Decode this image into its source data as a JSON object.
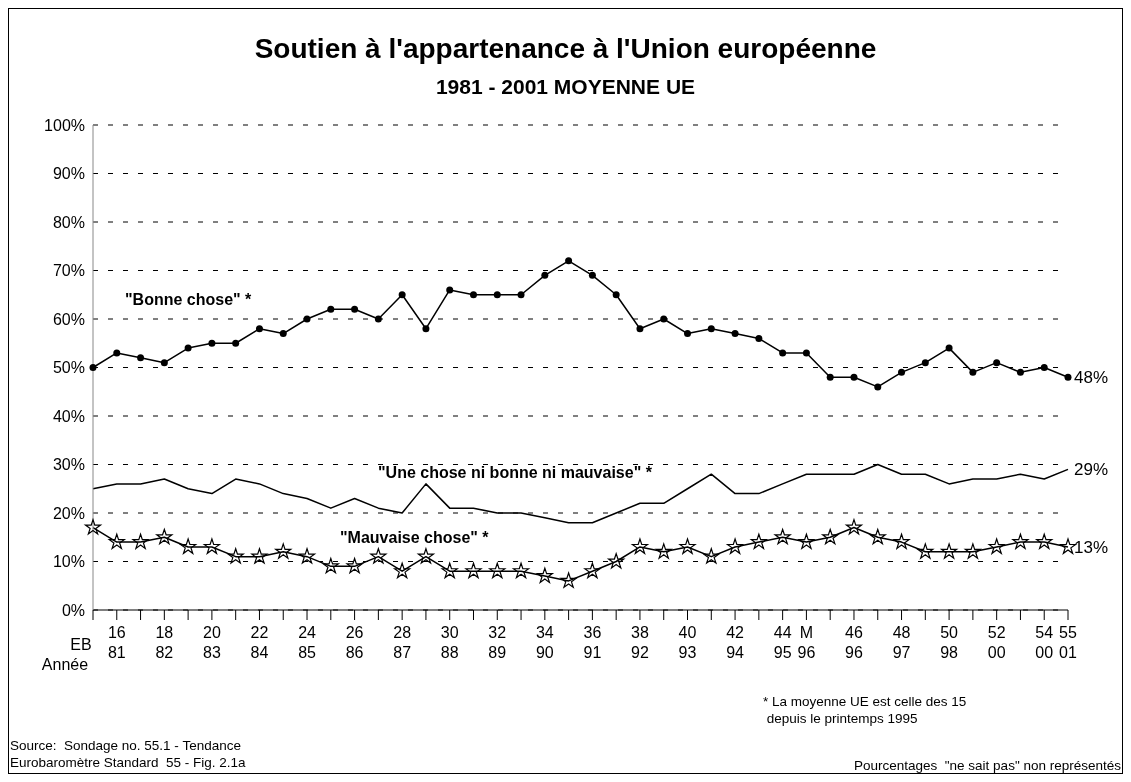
{
  "chart_data": {
    "type": "line",
    "title": "Soutien à l'appartenance à l'Union européenne",
    "subtitle": "1981 - 2001 MOYENNE UE",
    "categories": [
      null,
      "16\n81",
      null,
      "18\n82",
      null,
      "20\n83",
      null,
      "22\n84",
      null,
      "24\n85",
      null,
      "26\n86",
      null,
      "28\n87",
      null,
      "30\n88",
      null,
      "32\n89",
      null,
      "34\n90",
      null,
      "36\n91",
      null,
      "38\n92",
      null,
      "40\n93",
      null,
      "42\n94",
      null,
      "44\n95",
      "M\n96",
      null,
      "46\n96",
      null,
      "48\n97",
      null,
      "50\n98",
      null,
      "52\n00",
      null,
      "54\n00",
      "55\n01"
    ],
    "series": [
      {
        "name": "\"Bonne chose\" *",
        "color": "#000000",
        "marker": "circle",
        "values": [
          50,
          53,
          52,
          51,
          54,
          55,
          55,
          58,
          57,
          60,
          62,
          62,
          60,
          65,
          58,
          66,
          65,
          65,
          65,
          69,
          72,
          69,
          65,
          58,
          60,
          57,
          58,
          57,
          56,
          53,
          53,
          48,
          48,
          46,
          49,
          51,
          54,
          49,
          51,
          49,
          50,
          48
        ],
        "value_labels": [
          null,
          null,
          null,
          null,
          null,
          null,
          null,
          null,
          null,
          null,
          null,
          null,
          null,
          null,
          null,
          null,
          null,
          null,
          null,
          null,
          null,
          null,
          null,
          null,
          null,
          null,
          null,
          null,
          null,
          null,
          null,
          null,
          null,
          null,
          null,
          null,
          null,
          null,
          null,
          null,
          null,
          "48%"
        ]
      },
      {
        "name": "\"Une chose ni bonne ni mauvaise\" *",
        "color": "#000000",
        "marker": "none",
        "values": [
          25,
          26,
          26,
          27,
          25,
          24,
          27,
          26,
          24,
          23,
          21,
          23,
          21,
          20,
          26,
          21,
          21,
          20,
          20,
          19,
          18,
          18,
          20,
          22,
          22,
          25,
          28,
          24,
          24,
          26,
          28,
          28,
          28,
          30,
          28,
          28,
          26,
          27,
          27,
          28,
          27,
          29
        ],
        "value_labels": [
          null,
          null,
          null,
          null,
          null,
          null,
          null,
          null,
          null,
          null,
          null,
          null,
          null,
          null,
          null,
          null,
          null,
          null,
          null,
          null,
          null,
          null,
          null,
          null,
          null,
          null,
          null,
          null,
          null,
          null,
          null,
          null,
          null,
          null,
          null,
          null,
          null,
          null,
          null,
          null,
          null,
          "29%"
        ]
      },
      {
        "name": "\"Mauvaise chose\" *",
        "color": "#000000",
        "marker": "star",
        "values": [
          17,
          14,
          14,
          15,
          13,
          13,
          11,
          11,
          12,
          11,
          9,
          9,
          11,
          8,
          11,
          8,
          8,
          8,
          8,
          7,
          6,
          8,
          10,
          13,
          12,
          13,
          11,
          13,
          14,
          15,
          14,
          15,
          17,
          15,
          14,
          12,
          12,
          12,
          13,
          14,
          14,
          13
        ],
        "value_labels": [
          null,
          null,
          null,
          null,
          null,
          null,
          null,
          null,
          null,
          null,
          null,
          null,
          null,
          null,
          null,
          null,
          null,
          null,
          null,
          null,
          null,
          null,
          null,
          null,
          null,
          null,
          null,
          null,
          null,
          null,
          null,
          null,
          null,
          null,
          null,
          null,
          null,
          null,
          null,
          null,
          null,
          "13%"
        ]
      }
    ],
    "ylim": [
      0,
      100
    ],
    "yticks": [
      {
        "value": 0,
        "label": "0%"
      },
      {
        "value": 10,
        "label": "10%"
      },
      {
        "value": 20,
        "label": "20%"
      },
      {
        "value": 30,
        "label": "30%"
      },
      {
        "value": 40,
        "label": "40%"
      },
      {
        "value": 50,
        "label": "50%"
      },
      {
        "value": 60,
        "label": "60%"
      },
      {
        "value": 70,
        "label": "70%"
      },
      {
        "value": 80,
        "label": "80%"
      },
      {
        "value": 90,
        "label": "90%"
      },
      {
        "value": 100,
        "label": "100%"
      }
    ],
    "grid": "y",
    "legend": false,
    "annotations": [
      "EB",
      "Année",
      "* La moyenne UE est celle des 15\n depuis le printemps 1995",
      "Source:  Sondage no. 55.1 - Tendance\nEurobaromètre Standard  55 - Fig. 2.1a",
      "Pourcentages  \"ne sait pas\" non représentés"
    ]
  }
}
